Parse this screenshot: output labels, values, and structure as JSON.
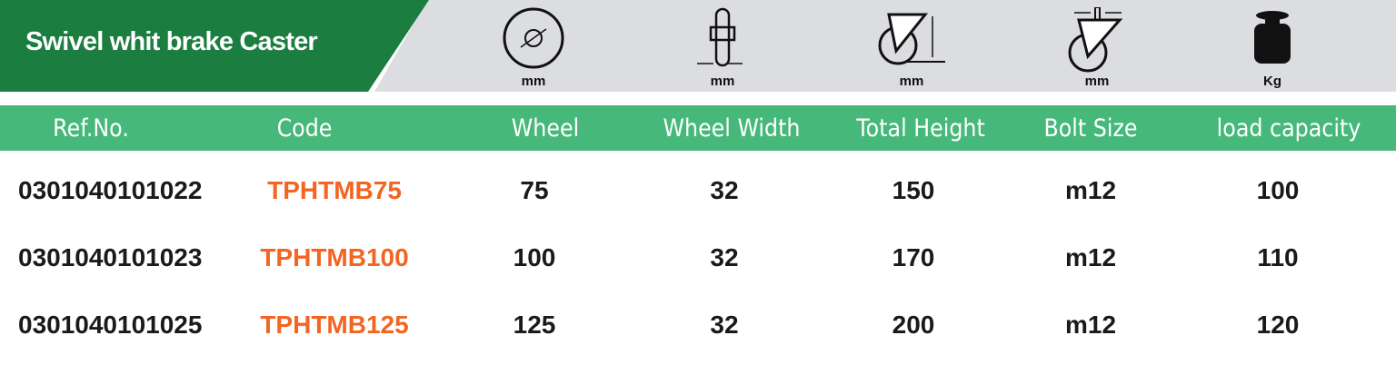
{
  "title": "Swivel whit brake Caster",
  "icons": [
    {
      "name": "wheel-diameter-icon",
      "unit": "mm"
    },
    {
      "name": "wheel-width-icon",
      "unit": "mm"
    },
    {
      "name": "total-height-icon",
      "unit": "mm"
    },
    {
      "name": "bolt-size-icon",
      "unit": "mm"
    },
    {
      "name": "weight-icon",
      "unit": "Kg"
    }
  ],
  "headers": [
    "Ref.No.",
    "Code",
    "Wheel",
    "Wheel Width",
    "Total Height",
    "Bolt Size",
    "load capacity"
  ],
  "rows": [
    {
      "ref": "0301040101022",
      "code": "TPHTMB75",
      "wheel": "75",
      "width": "32",
      "height": "150",
      "bolt": "m12",
      "load": "100"
    },
    {
      "ref": "0301040101023",
      "code": "TPHTMB100",
      "wheel": "100",
      "width": "32",
      "height": "170",
      "bolt": "m12",
      "load": "110"
    },
    {
      "ref": "0301040101025",
      "code": "TPHTMB125",
      "wheel": "125",
      "width": "32",
      "height": "200",
      "bolt": "m12",
      "load": "120"
    }
  ],
  "colors": {
    "banner": "#1b7d3f",
    "header": "#46b97a",
    "code": "#f26522",
    "band": "#dcdde0"
  }
}
